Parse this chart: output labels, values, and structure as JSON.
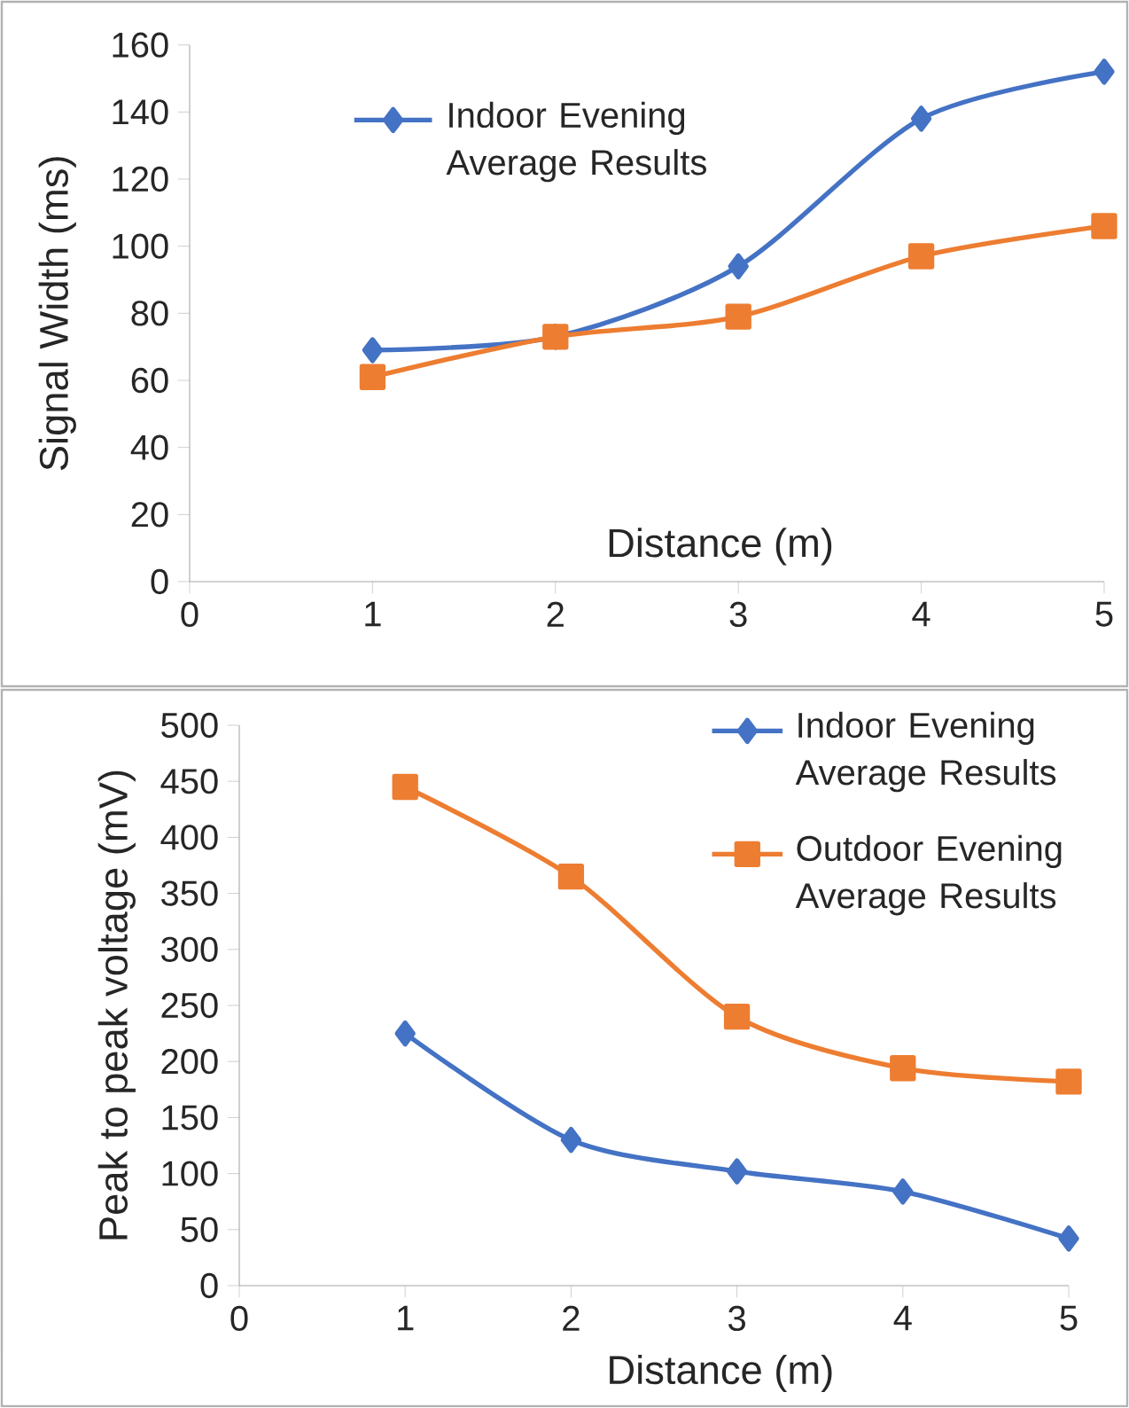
{
  "chart_data": [
    {
      "type": "line",
      "xlabel": "Distance (m)",
      "ylabel": "Signal Width (ms)",
      "x": [
        1,
        2,
        3,
        4,
        5
      ],
      "xlim": [
        0,
        5
      ],
      "ylim": [
        0,
        160
      ],
      "xticks": [
        0,
        1,
        2,
        3,
        4,
        5
      ],
      "yticks": [
        0,
        20,
        40,
        60,
        80,
        100,
        120,
        140,
        160
      ],
      "grid": false,
      "legend": "top",
      "series": [
        {
          "name": "Indoor Evening Average Results",
          "color": "#4472c4",
          "marker": "diamond",
          "values": [
            69,
            73,
            94,
            138,
            152
          ]
        },
        {
          "color": "#ed7d31",
          "marker": "square",
          "values": [
            61,
            73,
            79,
            97,
            106
          ]
        }
      ]
    },
    {
      "type": "line",
      "xlabel": "Distance (m)",
      "ylabel": "Peak to peak voltage (mV)",
      "x": [
        1,
        2,
        3,
        4,
        5
      ],
      "xlim": [
        0,
        5
      ],
      "ylim": [
        0,
        500
      ],
      "xticks": [
        0,
        1,
        2,
        3,
        4,
        5
      ],
      "yticks": [
        0,
        50,
        100,
        150,
        200,
        250,
        300,
        350,
        400,
        450,
        500
      ],
      "grid": false,
      "legend": "top right",
      "series": [
        {
          "name": "Indoor Evening Average Results",
          "color": "#4472c4",
          "marker": "diamond",
          "values": [
            225,
            130,
            102,
            84,
            42
          ]
        },
        {
          "name": "Outdoor Evening Average Results",
          "color": "#ed7d31",
          "marker": "square",
          "values": [
            445,
            365,
            240,
            194,
            182
          ]
        }
      ]
    }
  ]
}
